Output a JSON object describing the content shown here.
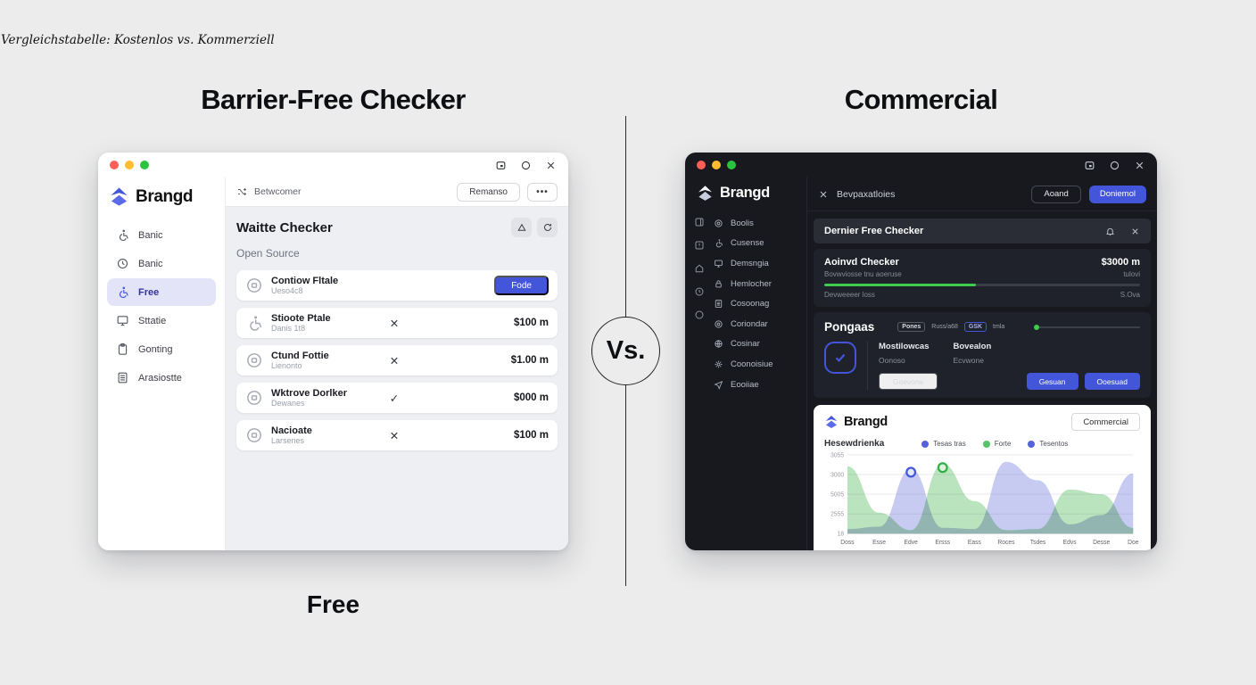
{
  "page": {
    "caption": "Vergleichstabelle: Kostenlos vs. Kommerziell",
    "left_title": "Barrier-Free Checker",
    "right_title": "Commercial",
    "vs_label": "Vs.",
    "free_label": "Free",
    "colors": {
      "accent": "#4355d8",
      "green": "#3ecb4e",
      "page_bg": "#ececec",
      "dark_bg": "#17191f"
    }
  },
  "left_app": {
    "logo": "Brangd",
    "topbar": {
      "breadcrumb": "Betwcomer",
      "action_label": "Remanso",
      "more_label": "•••"
    },
    "sidebar": {
      "items": [
        {
          "label": "Banic"
        },
        {
          "label": "Banic"
        },
        {
          "label": "Free"
        },
        {
          "label": "Sttatie"
        },
        {
          "label": "Gonting"
        },
        {
          "label": "Arasiostte"
        }
      ]
    },
    "main": {
      "title": "Waitte Checker",
      "subtitle": "Open Source",
      "rows": [
        {
          "title": "Contiow Fltale",
          "subtitle": "Ueso4c8",
          "button": "Fode"
        },
        {
          "title": "Stioote Ptale",
          "subtitle": "Danis 1t8",
          "mark": "✕",
          "price": "$100 m"
        },
        {
          "title": "Ctund Fottie",
          "subtitle": "Lienonto",
          "mark": "✕",
          "price": "$1.00 m"
        },
        {
          "title": "Wktrove Dorlker",
          "subtitle": "Dewanes",
          "mark": "✓",
          "price": "$000 m"
        },
        {
          "title": "Nacioate",
          "subtitle": "Larsenes",
          "mark": "✕",
          "price": "$100 m"
        }
      ]
    }
  },
  "right_app": {
    "logo": "Brangd",
    "topbar": {
      "search": "Bevpaxatloies",
      "secondary_label": "Aoand",
      "primary_label": "Doniemol"
    },
    "sidebar": {
      "items": [
        {
          "label": "Boolis"
        },
        {
          "label": "Cusense"
        },
        {
          "label": "Demsngia"
        },
        {
          "label": "Hemlocher"
        },
        {
          "label": "Cosoonag"
        },
        {
          "label": "Coriondar"
        },
        {
          "label": "Cosinar"
        },
        {
          "label": "Coonoisiue"
        },
        {
          "label": "Eooiiae"
        }
      ]
    },
    "banner": {
      "title": "Dernier Free Checker"
    },
    "status_card": {
      "title": "Aoinvd Checker",
      "price": "$3000 m",
      "line1": "Bovwviosse tnu aoeruse",
      "line1_right": "tulovi",
      "progress_pct": 48,
      "line2": "Devweeeer loss",
      "line2_right": "S.Ova"
    },
    "plan_card": {
      "title": "Pongaas",
      "badges": [
        "Pones",
        "Russ/a68",
        "GSK",
        "tmla"
      ],
      "col1_title": "Mostilowcas",
      "col1_sub": "Oonoso",
      "col2_title": "Bovealon",
      "col2_sub": "Ecvwone",
      "ghost_label": "Goevorw",
      "primary1": "Gesuan",
      "primary2": "Ooesuad"
    },
    "chart_card": {
      "logo": "Brangd",
      "button_label": "Commercial"
    }
  },
  "chart_data": {
    "type": "area",
    "title": "Hesewdrienka",
    "categories": [
      "Doss",
      "Esse",
      "Edve",
      "Ersss",
      "Eass",
      "Roces",
      "Tsdes",
      "Edvs",
      "Desse",
      "Doe"
    ],
    "y_ticks": [
      "3055",
      "3000",
      "5005",
      "2555",
      "18"
    ],
    "ylim": [
      0,
      3400
    ],
    "grid": true,
    "legend_position": "top",
    "legend": [
      {
        "label": "Tesas tras",
        "color": "#5563d9"
      },
      {
        "label": "Forte",
        "color": "#56c269"
      },
      {
        "label": "Tesentos",
        "color": "#5563d9"
      }
    ],
    "series": [
      {
        "name": "Tesas tras",
        "color": "#c3c7f0",
        "values": [
          200,
          300,
          2800,
          250,
          200,
          3100,
          2300,
          400,
          800,
          2600
        ],
        "marker": {
          "index": 2,
          "color": "#4355d8"
        }
      },
      {
        "name": "Forte",
        "color": "#b4e2b8",
        "values": [
          2900,
          900,
          150,
          3000,
          1400,
          150,
          200,
          1900,
          1700,
          250
        ],
        "marker": {
          "index": 3,
          "color": "#2fae44"
        }
      }
    ]
  }
}
